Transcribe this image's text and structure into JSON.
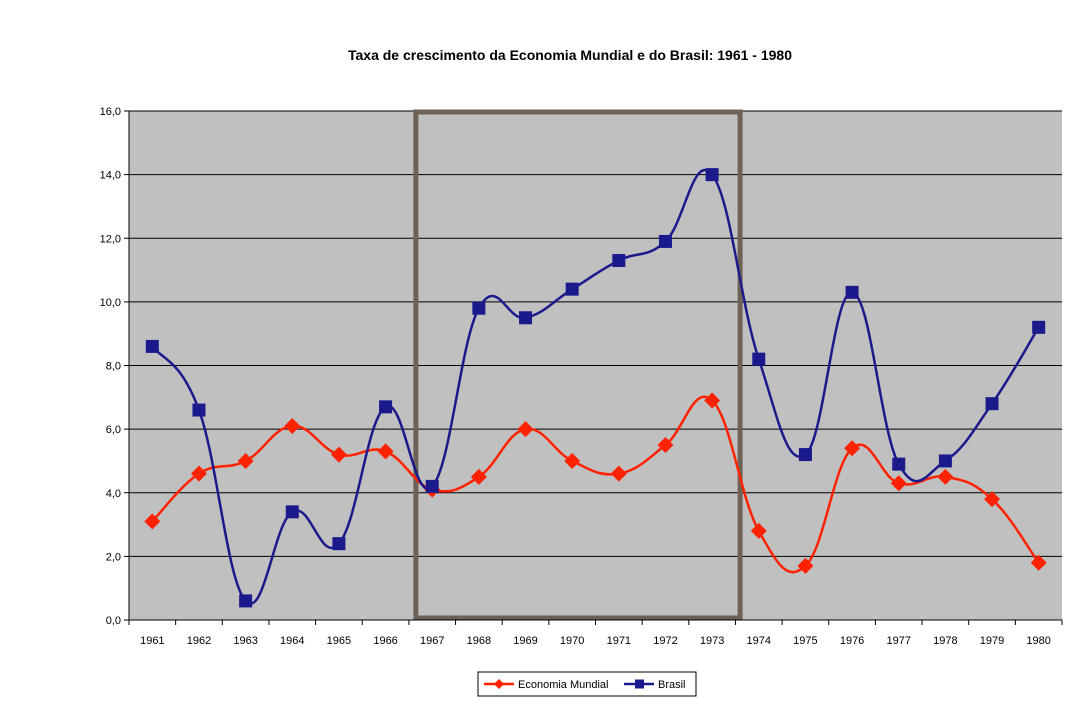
{
  "chart_data": {
    "type": "line",
    "title": "Taxa de crescimento da Economia Mundial e do Brasil: 1961 - 1980",
    "categories": [
      "1961",
      "1962",
      "1963",
      "1964",
      "1965",
      "1966",
      "1967",
      "1968",
      "1969",
      "1970",
      "1971",
      "1972",
      "1973",
      "1974",
      "1975",
      "1976",
      "1977",
      "1978",
      "1979",
      "1980"
    ],
    "ylim": [
      0,
      16
    ],
    "yticks": [
      "0,0",
      "2,0",
      "4,0",
      "6,0",
      "8,0",
      "10,0",
      "12,0",
      "14,0",
      "16,0"
    ],
    "grid": true,
    "legend_position": "bottom",
    "highlight_range": [
      "1967",
      "1973"
    ],
    "series": [
      {
        "name": "Economia Mundial",
        "color": "#ff2200",
        "marker": "diamond",
        "values": [
          3.1,
          4.6,
          5.0,
          6.1,
          5.2,
          5.3,
          4.1,
          4.5,
          6.0,
          5.0,
          4.6,
          5.5,
          6.9,
          2.8,
          1.7,
          5.4,
          4.3,
          4.5,
          3.8,
          1.8
        ]
      },
      {
        "name": "Brasil",
        "color": "#1a1a8c",
        "marker": "square",
        "values": [
          8.6,
          6.6,
          0.6,
          3.4,
          2.4,
          6.7,
          4.2,
          9.8,
          9.5,
          10.4,
          11.3,
          11.9,
          14.0,
          8.2,
          5.2,
          10.3,
          4.9,
          5.0,
          6.8,
          9.2
        ]
      }
    ],
    "colors": {
      "plot_background": "#c0c0c0",
      "gridline": "#000000",
      "highlight_border": "#6e6155"
    }
  }
}
